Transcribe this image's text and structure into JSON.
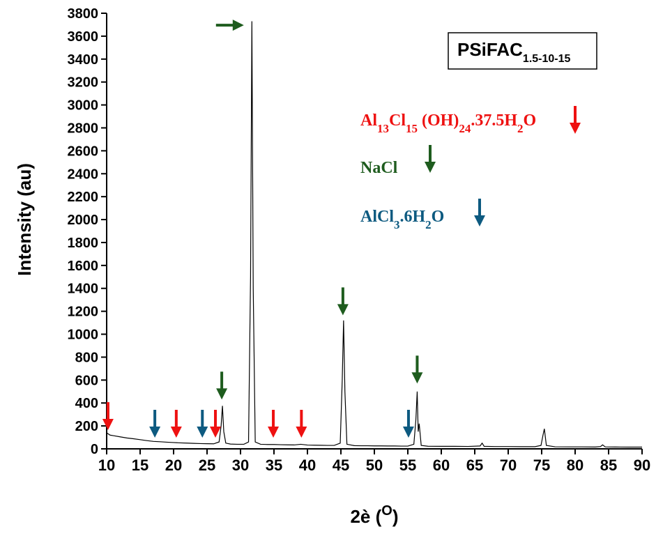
{
  "chart_data": {
    "type": "line",
    "title_parts": [
      "PSiFAC",
      "1.5-10-15"
    ],
    "xlabel_parts": [
      "2è (",
      "O",
      ")"
    ],
    "ylabel": "Intensity (au)",
    "xlim": [
      10,
      90
    ],
    "ylim": [
      0,
      3800
    ],
    "xticks": [
      10,
      15,
      20,
      25,
      30,
      35,
      40,
      45,
      50,
      55,
      60,
      65,
      70,
      75,
      80,
      85,
      90
    ],
    "yticks": [
      0,
      200,
      400,
      600,
      800,
      1000,
      1200,
      1400,
      1600,
      1800,
      2000,
      2200,
      2400,
      2600,
      2800,
      3000,
      3200,
      3400,
      3600,
      3800
    ],
    "series": [
      {
        "color": "#000000",
        "x": [
          10,
          10.5,
          11,
          12,
          13,
          14,
          15,
          16,
          17,
          18,
          19,
          20,
          21,
          22,
          23,
          24,
          25,
          26,
          26.8,
          27.1,
          27.3,
          27.5,
          27.8,
          28.5,
          29.5,
          30.5,
          31.2,
          31.5,
          31.7,
          31.9,
          32.2,
          33,
          34,
          35,
          36,
          37,
          38,
          39,
          40,
          41,
          42,
          43,
          44,
          44.9,
          45.2,
          45.4,
          45.6,
          45.9,
          47,
          48,
          49,
          50,
          51,
          52,
          53,
          54,
          55,
          55.9,
          56.2,
          56.4,
          56.55,
          56.7,
          57,
          58,
          60,
          62,
          64,
          65.8,
          66.1,
          66.4,
          68,
          70,
          72,
          74,
          74.9,
          75.2,
          75.4,
          75.7,
          77,
          79,
          81,
          83,
          83.8,
          84.1,
          84.5,
          86,
          88,
          90
        ],
        "values": [
          140,
          120,
          115,
          105,
          95,
          88,
          80,
          72,
          65,
          62,
          58,
          55,
          52,
          50,
          48,
          46,
          45,
          44,
          60,
          200,
          375,
          150,
          50,
          42,
          40,
          40,
          60,
          1500,
          3730,
          1400,
          60,
          40,
          38,
          38,
          36,
          35,
          34,
          40,
          33,
          32,
          31,
          30,
          30,
          50,
          600,
          1120,
          500,
          40,
          28,
          27,
          27,
          26,
          26,
          25,
          25,
          24,
          24,
          40,
          250,
          500,
          150,
          220,
          30,
          23,
          22,
          22,
          21,
          25,
          50,
          22,
          20,
          20,
          19,
          19,
          30,
          120,
          175,
          30,
          18,
          17,
          17,
          16,
          20,
          35,
          17,
          16,
          15,
          15
        ]
      }
    ],
    "phases": [
      {
        "label_parts": [
          "Al",
          "13",
          "Cl",
          "15",
          " (OH)",
          "24",
          ".37.5H",
          "2",
          "O"
        ],
        "color": "#ee1111",
        "peaks": [
          {
            "x": 10.2,
            "y": 164
          },
          {
            "x": 20.4,
            "y": 97
          },
          {
            "x": 26.25,
            "y": 97
          },
          {
            "x": 34.9,
            "y": 97
          },
          {
            "x": 39.1,
            "y": 97
          }
        ]
      },
      {
        "label_parts": [
          "NaCl"
        ],
        "color": "#1e5c1e",
        "peaks": [
          {
            "x": 27.2,
            "y": 430
          },
          {
            "x": 45.3,
            "y": 1165
          },
          {
            "x": 56.4,
            "y": 570
          },
          {
            "x": 30.5,
            "y": 3696,
            "direction": "right"
          }
        ]
      },
      {
        "label_parts": [
          "AlCl",
          "3",
          ".6H",
          "2",
          "O"
        ],
        "color": "#0d5a80",
        "peaks": [
          {
            "x": 17.2,
            "y": 97
          },
          {
            "x": 24.3,
            "y": 97
          },
          {
            "x": 55.1,
            "y": 97
          }
        ]
      }
    ]
  }
}
